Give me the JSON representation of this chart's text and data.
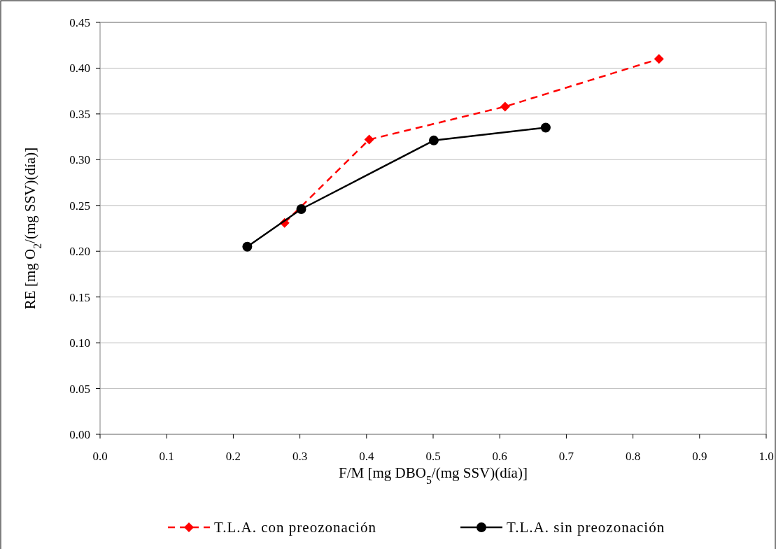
{
  "chart_data": {
    "type": "line",
    "xlabel": "F/M [mg DBO$_{5}$/(mg SSV)(día)]",
    "ylabel": "RE [mg O$_{2}$/(mg SSV)(día)]",
    "xlim": [
      0,
      1
    ],
    "xticks": [
      {
        "value": 0,
        "label": "0.0"
      },
      {
        "value": 0.1,
        "label": "0.1"
      },
      {
        "value": 0.2,
        "label": "0.2"
      },
      {
        "value": 0.3,
        "label": "0.3"
      },
      {
        "value": 0.4,
        "label": "0.4"
      },
      {
        "value": 0.5,
        "label": "0.5"
      },
      {
        "value": 0.6,
        "label": "0.6"
      },
      {
        "value": 0.7,
        "label": "0.7"
      },
      {
        "value": 0.8,
        "label": "0.8"
      },
      {
        "value": 0.9,
        "label": "0.9"
      },
      {
        "value": 1,
        "label": "1.0"
      }
    ],
    "ylim": [
      0,
      0.45
    ],
    "yticks": [
      {
        "value": 0,
        "label": "0.00"
      },
      {
        "value": 0.05,
        "label": "0.05"
      },
      {
        "value": 0.1,
        "label": "0.10"
      },
      {
        "value": 0.15,
        "label": "0.15"
      },
      {
        "value": 0.2,
        "label": "0.20"
      },
      {
        "value": 0.25,
        "label": "0.25"
      },
      {
        "value": 0.3,
        "label": "0.30"
      },
      {
        "value": 0.35,
        "label": "0.35"
      },
      {
        "value": 0.4,
        "label": "0.40"
      },
      {
        "value": 0.45,
        "label": "0.45"
      }
    ],
    "grid": "y",
    "legend": "bottom",
    "series": [
      {
        "name": "T.L.A. con preozonación",
        "color": "#ff0000",
        "marker": "diamond",
        "line_style": "dashed",
        "x": [
          0.277,
          0.404,
          0.608,
          0.839
        ],
        "values": [
          0.231,
          0.322,
          0.358,
          0.41
        ]
      },
      {
        "name": "T.L.A. sin preozonación",
        "color": "#000000",
        "marker": "circle",
        "line_style": "solid",
        "x": [
          0.221,
          0.302,
          0.501,
          0.669
        ],
        "values": [
          0.205,
          0.246,
          0.321,
          0.335
        ]
      }
    ]
  }
}
